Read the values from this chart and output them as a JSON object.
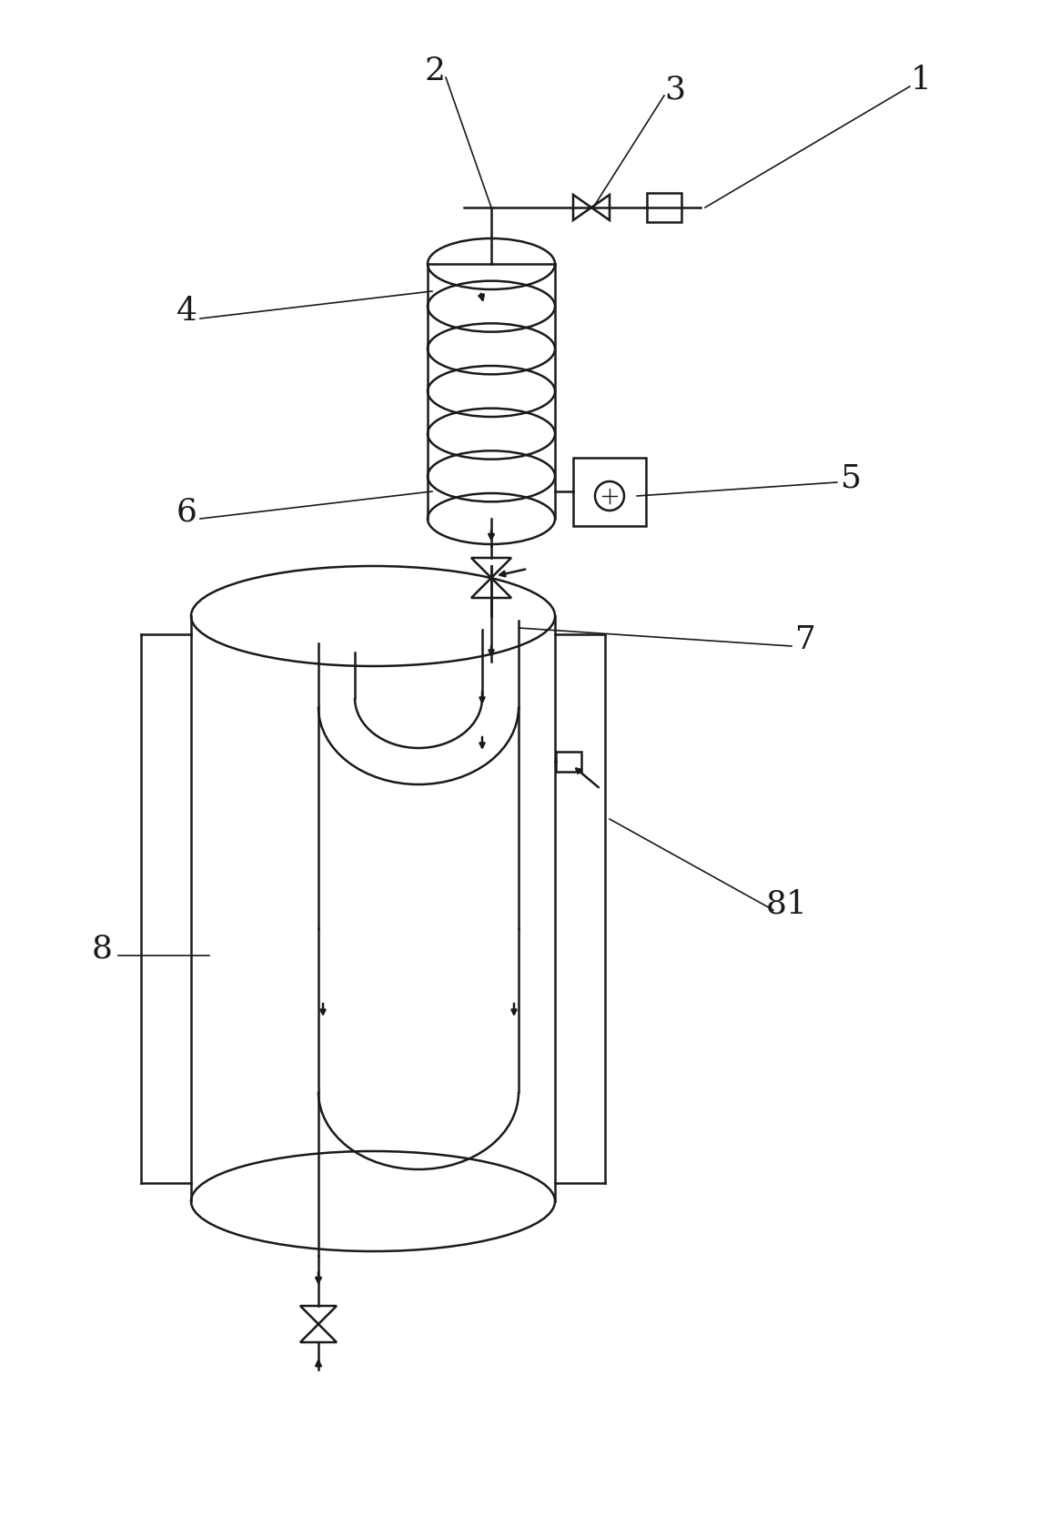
{
  "bg_color": "#ffffff",
  "lc": "#1a1a1a",
  "lw": 1.8,
  "fig_w": 11.64,
  "fig_h": 16.67
}
